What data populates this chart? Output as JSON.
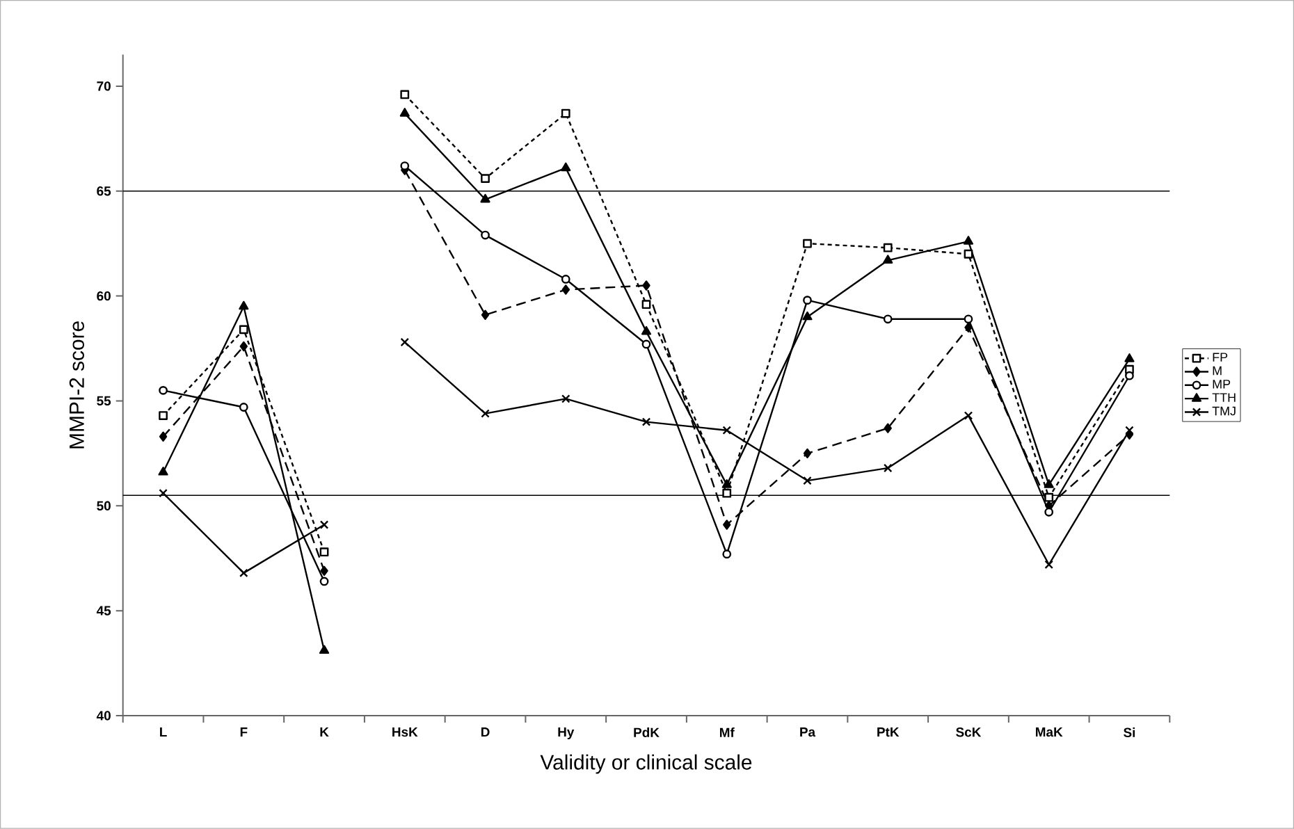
{
  "chart_data": {
    "type": "line",
    "xlabel": "Validity or clinical scale",
    "ylabel": "MMPI-2 score",
    "categories": [
      "L",
      "F",
      "K",
      "HsK",
      "D",
      "Hy",
      "PdK",
      "Mf",
      "Pa",
      "PtK",
      "ScK",
      "MaK",
      "Si"
    ],
    "ylim": [
      40,
      71.5
    ],
    "yticks": [
      40,
      45,
      50,
      55,
      60,
      65,
      70
    ],
    "grid": false,
    "legend": "right",
    "ref_lines": [
      {
        "axis": "y",
        "value": 65,
        "color": "#000000"
      },
      {
        "axis": "y",
        "value": 50.5,
        "color": "#000000"
      }
    ],
    "series": [
      {
        "name": "FP",
        "color": "#000000",
        "marker": "square",
        "line_style": "dotted",
        "values": [
          54.3,
          58.4,
          47.8,
          null,
          null,
          null,
          null,
          null,
          null,
          null,
          null,
          null,
          null
        ]
      },
      {
        "name": "M",
        "color": "#000000",
        "marker": "diamond",
        "line_style": "dashed",
        "values": [
          53.3,
          57.6,
          46.9,
          null,
          null,
          null,
          null,
          null,
          null,
          null,
          null,
          null,
          null
        ]
      },
      {
        "name": "MP",
        "color": "#000000",
        "marker": "circle",
        "line_style": "solid",
        "values": [
          55.5,
          54.7,
          46.4,
          null,
          null,
          null,
          null,
          null,
          null,
          null,
          null,
          null,
          null
        ]
      },
      {
        "name": "TTH",
        "color": "#000000",
        "marker": "triangle",
        "line_style": "solid",
        "values": [
          51.6,
          59.5,
          43.1,
          null,
          null,
          null,
          null,
          null,
          null,
          null,
          null,
          null,
          null
        ]
      },
      {
        "name": "TMJ",
        "color": "#000000",
        "marker": "cross",
        "line_style": "solid",
        "values": [
          50.6,
          46.8,
          49.1,
          null,
          null,
          null,
          null,
          null,
          null,
          null,
          null,
          null,
          null
        ]
      },
      {
        "color": "#000000",
        "marker": "square",
        "line_style": "dotted",
        "values": [
          null,
          null,
          null,
          69.6,
          65.6,
          68.7,
          59.6,
          50.6,
          62.5,
          62.3,
          62.0,
          50.4,
          56.5
        ]
      },
      {
        "color": "#000000",
        "marker": "diamond",
        "line_style": "dashed",
        "values": [
          null,
          null,
          null,
          66.0,
          59.1,
          60.3,
          60.5,
          49.1,
          52.5,
          53.7,
          58.5,
          50.0,
          53.4
        ]
      },
      {
        "color": "#000000",
        "marker": "circle",
        "line_style": "solid",
        "values": [
          null,
          null,
          null,
          66.2,
          62.9,
          60.8,
          57.7,
          47.7,
          59.8,
          58.9,
          58.9,
          49.7,
          56.2
        ]
      },
      {
        "color": "#000000",
        "marker": "triangle",
        "line_style": "solid",
        "values": [
          null,
          null,
          null,
          68.7,
          64.6,
          66.1,
          58.3,
          51.0,
          59.0,
          61.7,
          62.6,
          51.0,
          57.0
        ]
      },
      {
        "color": "#000000",
        "marker": "cross",
        "line_style": "solid",
        "values": [
          null,
          null,
          null,
          57.8,
          54.4,
          55.1,
          54.0,
          53.6,
          51.2,
          51.8,
          54.3,
          47.2,
          53.6
        ]
      }
    ]
  }
}
